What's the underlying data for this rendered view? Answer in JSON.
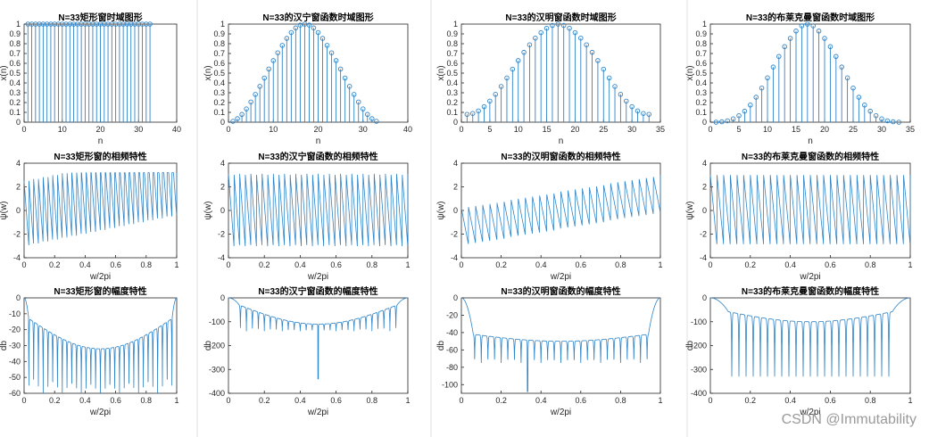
{
  "colors": {
    "line": "#2f84c8",
    "axis": "#262626",
    "grid": "#e6e6e6",
    "background": "#ffffff",
    "gutter": "#f0f0f0"
  },
  "watermark": "CSDN @Immutability",
  "chart_data": [
    {
      "type": "stem",
      "title": "N=33矩形窗时域图形",
      "xlabel": "n",
      "ylabel": "x(n)",
      "xlim": [
        0,
        40
      ],
      "ylim": [
        0,
        1
      ],
      "xticks": [
        0,
        10,
        20,
        30,
        40
      ],
      "yticks": [
        0,
        0.1,
        0.2,
        0.3,
        0.4,
        0.5,
        0.6,
        0.7,
        0.8,
        0.9,
        1
      ],
      "n": [
        1,
        2,
        3,
        4,
        5,
        6,
        7,
        8,
        9,
        10,
        11,
        12,
        13,
        14,
        15,
        16,
        17,
        18,
        19,
        20,
        21,
        22,
        23,
        24,
        25,
        26,
        27,
        28,
        29,
        30,
        31,
        32,
        33
      ],
      "values": [
        1,
        1,
        1,
        1,
        1,
        1,
        1,
        1,
        1,
        1,
        1,
        1,
        1,
        1,
        1,
        1,
        1,
        1,
        1,
        1,
        1,
        1,
        1,
        1,
        1,
        1,
        1,
        1,
        1,
        1,
        1,
        1,
        1
      ]
    },
    {
      "type": "stem",
      "title": "N=33的汉宁窗函数时域图形",
      "xlabel": "n",
      "ylabel": "x(n)",
      "xlim": [
        0,
        40
      ],
      "ylim": [
        0,
        1
      ],
      "xticks": [
        0,
        10,
        20,
        30,
        40
      ],
      "yticks": [
        0,
        0.1,
        0.2,
        0.3,
        0.4,
        0.5,
        0.6,
        0.7,
        0.8,
        0.9,
        1
      ],
      "n": [
        1,
        2,
        3,
        4,
        5,
        6,
        7,
        8,
        9,
        10,
        11,
        12,
        13,
        14,
        15,
        16,
        17,
        18,
        19,
        20,
        21,
        22,
        23,
        24,
        25,
        26,
        27,
        28,
        29,
        30,
        31,
        32,
        33
      ],
      "values": [
        0.009,
        0.036,
        0.079,
        0.135,
        0.206,
        0.283,
        0.365,
        0.45,
        0.542,
        0.628,
        0.707,
        0.783,
        0.854,
        0.914,
        0.961,
        0.99,
        1,
        0.99,
        0.961,
        0.914,
        0.854,
        0.783,
        0.707,
        0.628,
        0.542,
        0.45,
        0.365,
        0.283,
        0.206,
        0.135,
        0.079,
        0.036,
        0.009
      ]
    },
    {
      "type": "stem",
      "title": "N=33的汉明窗函数时域图形",
      "xlabel": "n",
      "ylabel": "x(n)",
      "xlim": [
        0,
        35
      ],
      "ylim": [
        0,
        1
      ],
      "xticks": [
        0,
        5,
        10,
        15,
        20,
        25,
        30,
        35
      ],
      "yticks": [
        0,
        0.1,
        0.2,
        0.3,
        0.4,
        0.5,
        0.6,
        0.7,
        0.8,
        0.9,
        1
      ],
      "n": [
        1,
        2,
        3,
        4,
        5,
        6,
        7,
        8,
        9,
        10,
        11,
        12,
        13,
        14,
        15,
        16,
        17,
        18,
        19,
        20,
        21,
        22,
        23,
        24,
        25,
        26,
        27,
        28,
        29,
        30,
        31,
        32,
        33
      ],
      "values": [
        0.08,
        0.089,
        0.115,
        0.158,
        0.215,
        0.284,
        0.364,
        0.451,
        0.54,
        0.628,
        0.712,
        0.789,
        0.857,
        0.913,
        0.957,
        0.986,
        1,
        0.986,
        0.957,
        0.913,
        0.857,
        0.789,
        0.712,
        0.628,
        0.54,
        0.451,
        0.364,
        0.284,
        0.215,
        0.158,
        0.115,
        0.089,
        0.08
      ]
    },
    {
      "type": "stem",
      "title": "N=33的布莱克曼窗函数时域图形",
      "xlabel": "n",
      "ylabel": "x(n)",
      "xlim": [
        0,
        35
      ],
      "ylim": [
        0,
        1
      ],
      "xticks": [
        0,
        5,
        10,
        15,
        20,
        25,
        30,
        35
      ],
      "yticks": [
        0,
        0.1,
        0.2,
        0.3,
        0.4,
        0.5,
        0.6,
        0.7,
        0.8,
        0.9,
        1
      ],
      "n": [
        1,
        2,
        3,
        4,
        5,
        6,
        7,
        8,
        9,
        10,
        11,
        12,
        13,
        14,
        15,
        16,
        17,
        18,
        19,
        20,
        21,
        22,
        23,
        24,
        25,
        26,
        27,
        28,
        29,
        30,
        31,
        32,
        33
      ],
      "values": [
        0.0,
        0.004,
        0.014,
        0.034,
        0.066,
        0.112,
        0.175,
        0.254,
        0.348,
        0.452,
        0.562,
        0.67,
        0.77,
        0.854,
        0.929,
        0.982,
        1,
        0.982,
        0.929,
        0.854,
        0.77,
        0.67,
        0.562,
        0.452,
        0.348,
        0.254,
        0.175,
        0.112,
        0.066,
        0.034,
        0.014,
        0.004,
        0.0
      ]
    },
    {
      "type": "line",
      "variant": "phase",
      "title": "N=33矩形窗的相频特性",
      "xlabel": "w/2pi",
      "ylabel": "ψ(w)",
      "xlim": [
        0,
        1
      ],
      "ylim": [
        -4,
        4
      ],
      "xticks": [
        0,
        0.2,
        0.4,
        0.6,
        0.8,
        1
      ],
      "yticks": [
        -4,
        -2,
        0,
        2,
        4
      ],
      "cycles": 32,
      "trend": [
        -0.3,
        2.3
      ],
      "amplitude": 2.8
    },
    {
      "type": "line",
      "variant": "phase",
      "title": "N=33的汉宁窗函数的相频特性",
      "xlabel": "w/2pi",
      "ylabel": "ψ(w)",
      "xlim": [
        0,
        1
      ],
      "ylim": [
        -4,
        4
      ],
      "xticks": [
        0,
        0.2,
        0.4,
        0.6,
        0.8,
        1
      ],
      "yticks": [
        -4,
        -2,
        0,
        2,
        4
      ],
      "cycles": 32,
      "trend": [
        0,
        0
      ],
      "amplitude": 3.1
    },
    {
      "type": "line",
      "variant": "phase",
      "title": "N=33的汉明窗函数的相频特性",
      "xlabel": "w/2pi",
      "ylabel": "ψ(w)",
      "xlim": [
        0,
        1
      ],
      "ylim": [
        -4,
        4
      ],
      "xticks": [
        0,
        0.2,
        0.4,
        0.6,
        0.8,
        1
      ],
      "yticks": [
        -4,
        -2,
        0,
        2,
        4
      ],
      "cycles": 28,
      "trend": [
        -1.4,
        1.4
      ],
      "amplitude": 1.6
    },
    {
      "type": "line",
      "variant": "phase",
      "title": "N=33的布莱克曼窗函数的相频特性",
      "xlabel": "w/2pi",
      "ylabel": "ψ(w)",
      "xlim": [
        0,
        1
      ],
      "ylim": [
        -4,
        4
      ],
      "xticks": [
        0,
        0.2,
        0.4,
        0.6,
        0.8,
        1
      ],
      "yticks": [
        -4,
        -2,
        0,
        2,
        4
      ],
      "cycles": 30,
      "trend": [
        0,
        0
      ],
      "amplitude": 3.0
    },
    {
      "type": "line",
      "variant": "magnitude",
      "title": "N=33矩形窗的幅度特性",
      "xlabel": "w/2pi",
      "ylabel": "db",
      "xlim": [
        0,
        1
      ],
      "ylim": [
        -60,
        0
      ],
      "xticks": [
        0,
        0.2,
        0.4,
        0.6,
        0.8,
        1
      ],
      "yticks": [
        -60,
        -50,
        -40,
        -30,
        -20,
        -10,
        0
      ],
      "lobes": 32,
      "mainlobe": 0.03,
      "edge_level": -13,
      "center_level": -32,
      "notch_depth": -60
    },
    {
      "type": "line",
      "variant": "magnitude",
      "title": "N=33的汉宁窗函数的幅度特性",
      "xlabel": "w/2pi",
      "ylabel": "db",
      "xlim": [
        0,
        1
      ],
      "ylim": [
        -400,
        0
      ],
      "xticks": [
        0,
        0.2,
        0.4,
        0.6,
        0.8,
        1
      ],
      "yticks": [
        -400,
        -300,
        -200,
        -100,
        0
      ],
      "lobes": 30,
      "mainlobe": 0.06,
      "edge_level": -30,
      "center_level": -110,
      "notch_depth": -140,
      "deep_notch": [
        0.5,
        -340
      ]
    },
    {
      "type": "line",
      "variant": "magnitude",
      "title": "N=33的汉明窗函数的幅度特性",
      "xlabel": "w/2pi",
      "ylabel": "db",
      "xlim": [
        0,
        1
      ],
      "ylim": [
        -110,
        0
      ],
      "xticks": [
        0,
        0.2,
        0.4,
        0.6,
        0.8,
        1
      ],
      "yticks": [
        -100,
        -80,
        -60,
        -40,
        -20,
        0
      ],
      "lobes": 30,
      "mainlobe": 0.06,
      "edge_level": -42,
      "center_level": -50,
      "notch_depth": -75,
      "deep_notch": [
        0.333,
        -108
      ]
    },
    {
      "type": "line",
      "variant": "magnitude",
      "title": "N=33的布莱克曼窗函数的幅度特性",
      "xlabel": "w/2pi",
      "ylabel": "db",
      "xlim": [
        0,
        1
      ],
      "ylim": [
        -400,
        0
      ],
      "xticks": [
        0,
        0.2,
        0.4,
        0.6,
        0.8,
        1
      ],
      "yticks": [
        -400,
        -300,
        -200,
        -100,
        0
      ],
      "lobes": 28,
      "mainlobe": 0.09,
      "edge_level": -58,
      "center_level": -100,
      "notch_depth": -330
    }
  ]
}
